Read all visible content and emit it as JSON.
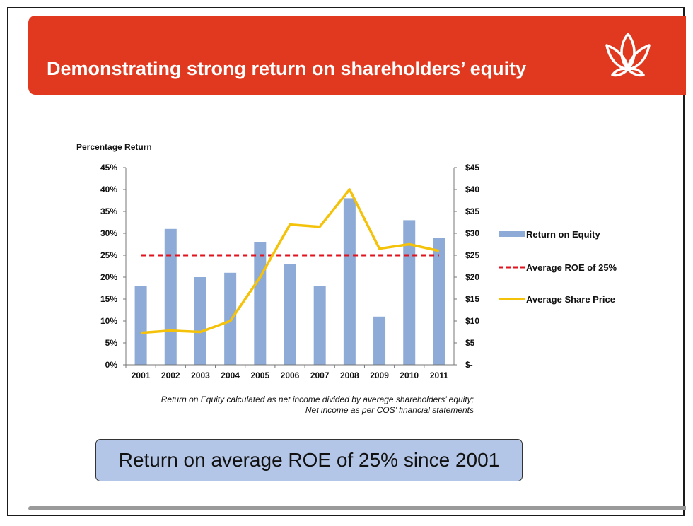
{
  "slide": {
    "title": "Demonstrating strong return on shareholders’ equity",
    "footnote_line1": "Return on Equity calculated as net income divided by average shareholders’ equity;",
    "footnote_line2": "Net income as per COS’ financial statements",
    "callout": "Return on average ROE of 25% since 2001"
  },
  "colors": {
    "banner": "#e0391f",
    "bars": "#8eaad6",
    "average_line": "#e0141e",
    "share_price_line": "#f5c20a",
    "callout": "#b4c6e7"
  },
  "chart_data": {
    "type": "bar",
    "title": "",
    "ylabel": "Percentage Return",
    "y2label": "",
    "categories": [
      "2001",
      "2002",
      "2003",
      "2004",
      "2005",
      "2006",
      "2007",
      "2008",
      "2009",
      "2010",
      "2011"
    ],
    "series": [
      {
        "name": "Return on Equity",
        "type": "bar",
        "axis": "left",
        "values": [
          18,
          31,
          20,
          21,
          28,
          23,
          18,
          38,
          11,
          33,
          29
        ]
      },
      {
        "name": "Average ROE of 25%",
        "type": "line",
        "style": "dashed",
        "axis": "left",
        "values": [
          25,
          25,
          25,
          25,
          25,
          25,
          25,
          25,
          25,
          25,
          25
        ]
      },
      {
        "name": "Average Share Price",
        "type": "line",
        "axis": "right",
        "values": [
          7.3,
          7.8,
          7.5,
          10,
          20,
          32,
          31.5,
          40,
          26.5,
          27.5,
          26
        ]
      }
    ],
    "ylim": [
      0,
      45
    ],
    "y2lim": [
      0,
      45
    ],
    "yticks": [
      "0%",
      "5%",
      "10%",
      "15%",
      "20%",
      "25%",
      "30%",
      "35%",
      "40%",
      "45%"
    ],
    "y2ticks": [
      "$-",
      "$5",
      "$10",
      "$15",
      "$20",
      "$25",
      "$30",
      "$35",
      "$40",
      "$45"
    ],
    "legend_position": "right",
    "grid": false
  }
}
